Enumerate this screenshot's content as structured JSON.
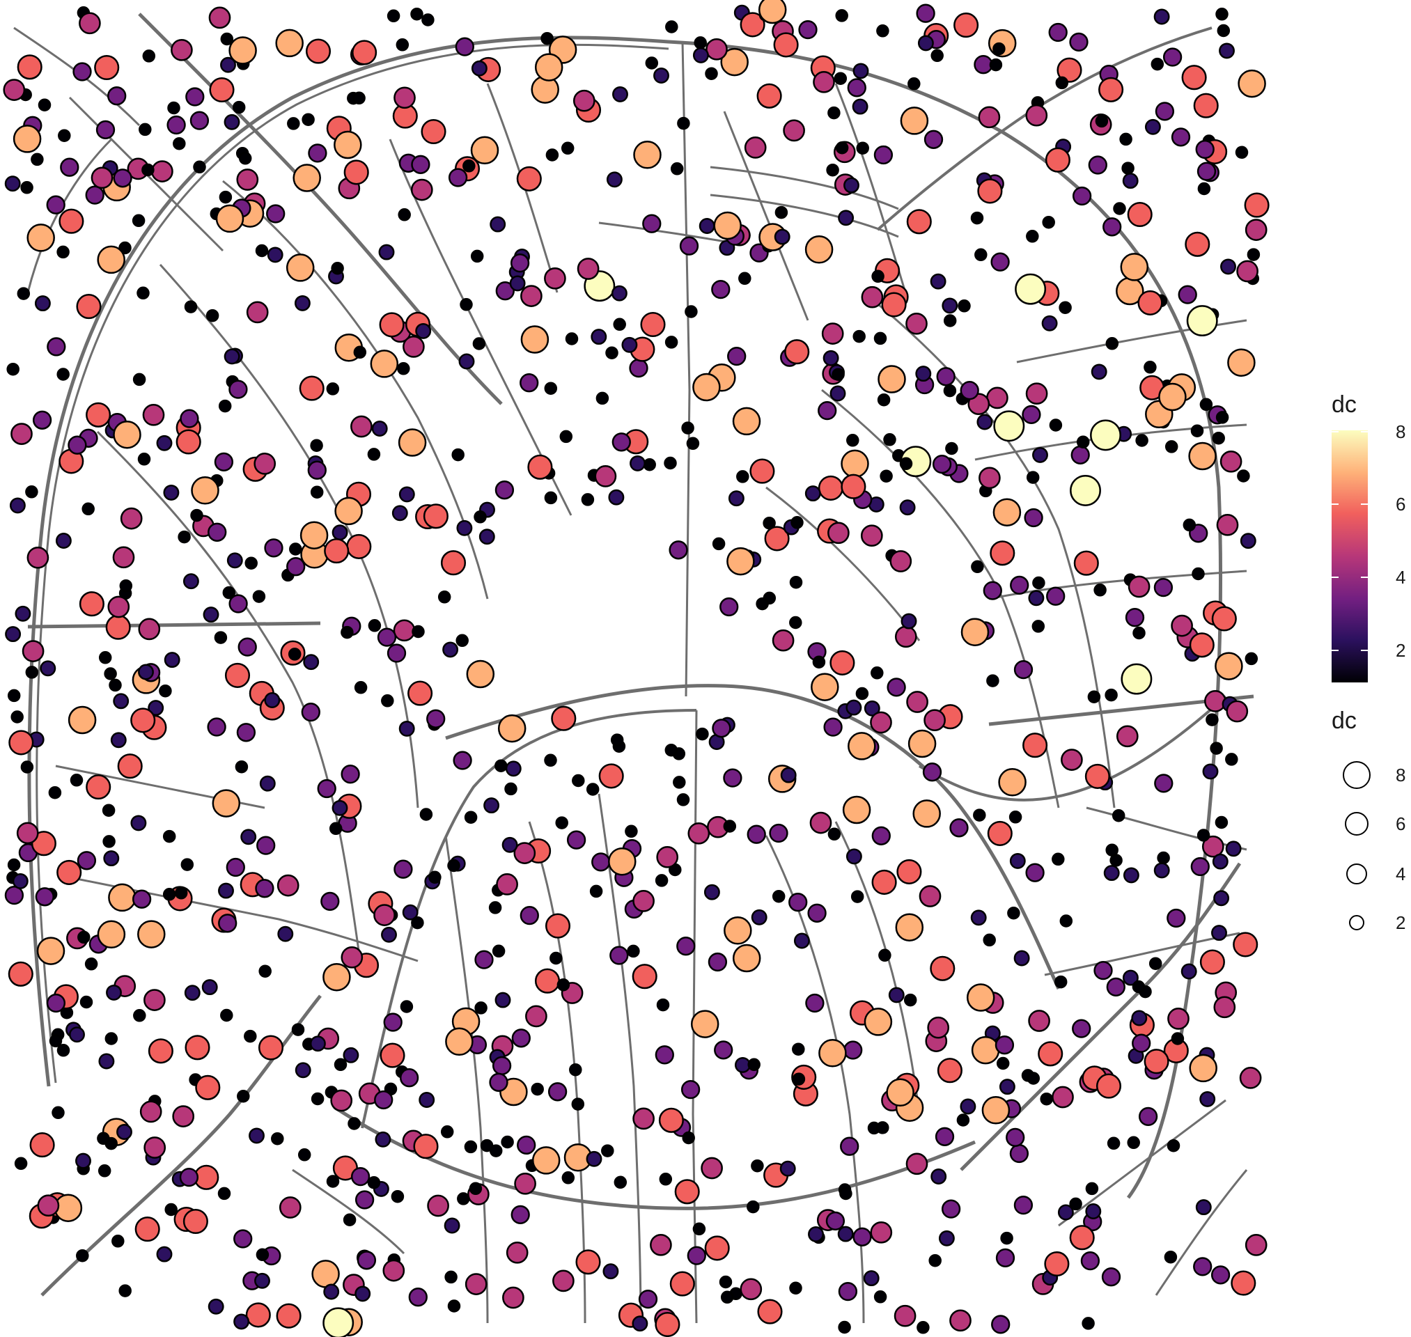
{
  "legend": {
    "color_title": "dc",
    "size_title": "dc",
    "color_ticks": [
      "2",
      "4",
      "6",
      "8"
    ],
    "size_ticks": [
      "8",
      "6",
      "4",
      "2"
    ],
    "color_scale": [
      "#000004",
      "#2c115f",
      "#721f81",
      "#b73779",
      "#f1605d",
      "#feb078",
      "#fcfdbf"
    ]
  },
  "map": {
    "node_outline_color": "#000000",
    "edge_color": "#6e6e6e",
    "background": "#ffffff"
  }
}
